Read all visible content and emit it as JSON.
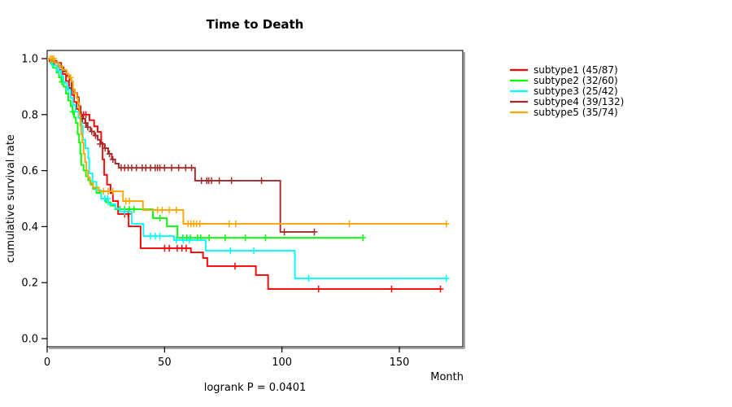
{
  "chart_data": {
    "type": "line",
    "subtype": "kaplan-meier-step",
    "title": "Time to Death",
    "xlabel": "Month",
    "ylabel": "cumulative survival rate",
    "footer": "logrank P = 0.0401",
    "xticks": [
      0,
      50,
      100,
      150
    ],
    "yticks": [
      "0.0",
      "0.2",
      "0.4",
      "0.6",
      "0.8",
      "1.0"
    ],
    "xlim": [
      0,
      178
    ],
    "ylim": [
      0,
      1
    ],
    "grid": false,
    "legend_position": "right",
    "frame_color": "#1a1a1a",
    "frame_shadow_color": "#8a8a8a",
    "series": [
      {
        "name": "subtype1",
        "label": "subtype1 (45/87)",
        "color": "#ff0000",
        "end_month": 167.8,
        "steps": [
          [
            0,
            1.0
          ],
          [
            1,
            0.99
          ],
          [
            3,
            0.976
          ],
          [
            5,
            0.96
          ],
          [
            6.5,
            0.945
          ],
          [
            8,
            0.92
          ],
          [
            9.3,
            0.895
          ],
          [
            10.5,
            0.87
          ],
          [
            11.5,
            0.845
          ],
          [
            12.5,
            0.82
          ],
          [
            13.5,
            0.8
          ],
          [
            18,
            0.78
          ],
          [
            20,
            0.758
          ],
          [
            21.5,
            0.738
          ],
          [
            23,
            0.7
          ],
          [
            23.6,
            0.64
          ],
          [
            24.3,
            0.585
          ],
          [
            25.5,
            0.55
          ],
          [
            27,
            0.52
          ],
          [
            28,
            0.491
          ],
          [
            30.2,
            0.445
          ],
          [
            34.7,
            0.401
          ],
          [
            39.8,
            0.323
          ],
          [
            61.2,
            0.308
          ],
          [
            66.4,
            0.288
          ],
          [
            68.2,
            0.259
          ],
          [
            88.9,
            0.227
          ],
          [
            94.1,
            0.177
          ]
        ],
        "censor_ticks": [
          [
            14.5,
            0.8
          ],
          [
            15.5,
            0.8
          ],
          [
            16.5,
            0.8
          ],
          [
            33,
            0.445
          ],
          [
            34.5,
            0.445
          ],
          [
            50,
            0.323
          ],
          [
            52,
            0.323
          ],
          [
            55.4,
            0.323
          ],
          [
            57.4,
            0.323
          ],
          [
            59.2,
            0.323
          ],
          [
            80,
            0.259
          ],
          [
            115.6,
            0.177
          ],
          [
            146.7,
            0.177
          ],
          [
            167.5,
            0.177
          ]
        ]
      },
      {
        "name": "subtype2",
        "label": "subtype2 (32/60)",
        "color": "#00ff00",
        "end_month": 134.5,
        "steps": [
          [
            0,
            1.0
          ],
          [
            1.5,
            0.983
          ],
          [
            2.5,
            0.967
          ],
          [
            4,
            0.95
          ],
          [
            5,
            0.933
          ],
          [
            6,
            0.917
          ],
          [
            7,
            0.9
          ],
          [
            8,
            0.875
          ],
          [
            9,
            0.85
          ],
          [
            10,
            0.83
          ],
          [
            10.8,
            0.81
          ],
          [
            11.5,
            0.79
          ],
          [
            12.2,
            0.77
          ],
          [
            13,
            0.73
          ],
          [
            13.6,
            0.7
          ],
          [
            14.1,
            0.66
          ],
          [
            14.5,
            0.62
          ],
          [
            15.5,
            0.6
          ],
          [
            16.5,
            0.58
          ],
          [
            17.5,
            0.565
          ],
          [
            18.5,
            0.55
          ],
          [
            19.5,
            0.535
          ],
          [
            21,
            0.52
          ],
          [
            23,
            0.5
          ],
          [
            25,
            0.487
          ],
          [
            27,
            0.475
          ],
          [
            29,
            0.462
          ],
          [
            45,
            0.43
          ],
          [
            51,
            0.401
          ],
          [
            55.5,
            0.36
          ]
        ],
        "censor_ticks": [
          [
            6.3,
            0.917
          ],
          [
            11,
            0.81
          ],
          [
            31,
            0.462
          ],
          [
            33,
            0.462
          ],
          [
            35,
            0.462
          ],
          [
            37,
            0.462
          ],
          [
            48,
            0.43
          ],
          [
            57.8,
            0.36
          ],
          [
            59.5,
            0.36
          ],
          [
            61,
            0.36
          ],
          [
            64,
            0.36
          ],
          [
            65.4,
            0.36
          ],
          [
            69,
            0.36
          ],
          [
            75.8,
            0.36
          ],
          [
            84.4,
            0.36
          ],
          [
            93,
            0.36
          ],
          [
            134.5,
            0.36
          ]
        ]
      },
      {
        "name": "subtype3",
        "label": "subtype3 (25/42)",
        "color": "#00ffff",
        "end_month": 170.2,
        "steps": [
          [
            0,
            1.0
          ],
          [
            2,
            0.976
          ],
          [
            4.2,
            0.957
          ],
          [
            6,
            0.938
          ],
          [
            6.9,
            0.913
          ],
          [
            8.5,
            0.89
          ],
          [
            10,
            0.86
          ],
          [
            11,
            0.835
          ],
          [
            12,
            0.81
          ],
          [
            13.3,
            0.788
          ],
          [
            14.6,
            0.76
          ],
          [
            15.2,
            0.71
          ],
          [
            16.3,
            0.68
          ],
          [
            17.5,
            0.645
          ],
          [
            17.9,
            0.59
          ],
          [
            19.3,
            0.56
          ],
          [
            21,
            0.53
          ],
          [
            23,
            0.5
          ],
          [
            26,
            0.48
          ],
          [
            29,
            0.465
          ],
          [
            31,
            0.453
          ],
          [
            36,
            0.41
          ],
          [
            41,
            0.366
          ],
          [
            54,
            0.352
          ],
          [
            67.5,
            0.314
          ],
          [
            105.5,
            0.215
          ]
        ],
        "censor_ticks": [
          [
            5,
            0.957
          ],
          [
            9,
            0.89
          ],
          [
            24.5,
            0.5
          ],
          [
            25.8,
            0.5
          ],
          [
            33,
            0.453
          ],
          [
            44,
            0.366
          ],
          [
            46,
            0.366
          ],
          [
            48,
            0.366
          ],
          [
            55,
            0.352
          ],
          [
            58,
            0.352
          ],
          [
            60.5,
            0.352
          ],
          [
            78,
            0.314
          ],
          [
            88,
            0.314
          ],
          [
            111.4,
            0.215
          ],
          [
            170,
            0.215
          ]
        ]
      },
      {
        "name": "subtype4",
        "label": "subtype4 (39/132)",
        "color": "#a52a2a",
        "end_month": 113.8,
        "steps": [
          [
            0,
            1.0
          ],
          [
            2,
            0.992
          ],
          [
            4,
            0.985
          ],
          [
            6,
            0.969
          ],
          [
            7,
            0.954
          ],
          [
            8.3,
            0.938
          ],
          [
            9.5,
            0.923
          ],
          [
            10.4,
            0.89
          ],
          [
            11.5,
            0.877
          ],
          [
            12.8,
            0.862
          ],
          [
            13.5,
            0.83
          ],
          [
            14.3,
            0.8
          ],
          [
            15.3,
            0.785
          ],
          [
            16.2,
            0.77
          ],
          [
            17,
            0.755
          ],
          [
            18.5,
            0.74
          ],
          [
            20,
            0.725
          ],
          [
            21.5,
            0.71
          ],
          [
            23,
            0.695
          ],
          [
            24.5,
            0.68
          ],
          [
            26,
            0.66
          ],
          [
            27.5,
            0.64
          ],
          [
            29,
            0.625
          ],
          [
            30.5,
            0.61
          ],
          [
            63,
            0.564
          ],
          [
            99.3,
            0.381
          ]
        ],
        "censor_ticks": [
          [
            15,
            0.785
          ],
          [
            16.4,
            0.77
          ],
          [
            17.3,
            0.755
          ],
          [
            19,
            0.74
          ],
          [
            20.6,
            0.725
          ],
          [
            22.5,
            0.695
          ],
          [
            24.7,
            0.68
          ],
          [
            26.5,
            0.66
          ],
          [
            28,
            0.64
          ],
          [
            31.5,
            0.61
          ],
          [
            33,
            0.61
          ],
          [
            34.5,
            0.61
          ],
          [
            36,
            0.61
          ],
          [
            38,
            0.61
          ],
          [
            40.5,
            0.61
          ],
          [
            42,
            0.61
          ],
          [
            44,
            0.61
          ],
          [
            46,
            0.61
          ],
          [
            47,
            0.61
          ],
          [
            48,
            0.61
          ],
          [
            50,
            0.61
          ],
          [
            53,
            0.61
          ],
          [
            56,
            0.61
          ],
          [
            59,
            0.61
          ],
          [
            61.5,
            0.61
          ],
          [
            65.7,
            0.564
          ],
          [
            68,
            0.564
          ],
          [
            68.8,
            0.564
          ],
          [
            70,
            0.564
          ],
          [
            73.3,
            0.564
          ],
          [
            78.5,
            0.564
          ],
          [
            91.3,
            0.564
          ],
          [
            101,
            0.381
          ],
          [
            113.8,
            0.381
          ]
        ]
      },
      {
        "name": "subtype5",
        "label": "subtype5 (35/74)",
        "color": "#ffa500",
        "end_month": 170.2,
        "steps": [
          [
            0,
            1.0
          ],
          [
            3,
            0.987
          ],
          [
            4.8,
            0.973
          ],
          [
            6.5,
            0.96
          ],
          [
            8.3,
            0.946
          ],
          [
            9.2,
            0.932
          ],
          [
            10.3,
            0.918
          ],
          [
            11,
            0.89
          ],
          [
            11.8,
            0.876
          ],
          [
            12.6,
            0.858
          ],
          [
            13.2,
            0.84
          ],
          [
            13.7,
            0.8
          ],
          [
            14.1,
            0.76
          ],
          [
            14.5,
            0.73
          ],
          [
            15,
            0.7
          ],
          [
            15.5,
            0.66
          ],
          [
            16.1,
            0.63
          ],
          [
            16.7,
            0.6
          ],
          [
            17.4,
            0.575
          ],
          [
            18.2,
            0.555
          ],
          [
            19.5,
            0.54
          ],
          [
            22,
            0.526
          ],
          [
            32.3,
            0.491
          ],
          [
            40.8,
            0.459
          ],
          [
            58,
            0.41
          ]
        ],
        "censor_ticks": [
          [
            1.4,
            1.0
          ],
          [
            2.1,
            1.0
          ],
          [
            2.8,
            1.0
          ],
          [
            10,
            0.932
          ],
          [
            24,
            0.526
          ],
          [
            26,
            0.526
          ],
          [
            28,
            0.526
          ],
          [
            33.5,
            0.491
          ],
          [
            35,
            0.491
          ],
          [
            47,
            0.459
          ],
          [
            49,
            0.459
          ],
          [
            52,
            0.459
          ],
          [
            55,
            0.459
          ],
          [
            60,
            0.41
          ],
          [
            61.2,
            0.41
          ],
          [
            62.4,
            0.41
          ],
          [
            63.6,
            0.41
          ],
          [
            65,
            0.41
          ],
          [
            77.5,
            0.41
          ],
          [
            80.3,
            0.41
          ],
          [
            128.7,
            0.41
          ],
          [
            170,
            0.41
          ]
        ]
      }
    ]
  }
}
